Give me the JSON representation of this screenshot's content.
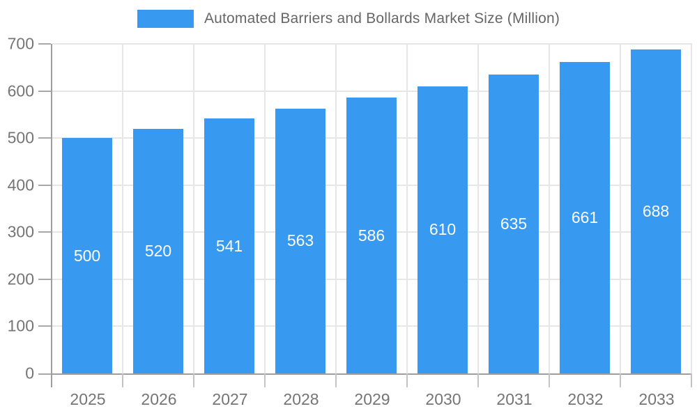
{
  "chart_data": {
    "type": "bar",
    "title": "Automated Barriers and Bollards Market Size (Million)",
    "legend": {
      "position": "top",
      "label": "Automated Barriers and Bollards Market Size (Million)"
    },
    "categories": [
      "2025",
      "2026",
      "2027",
      "2028",
      "2029",
      "2030",
      "2031",
      "2032",
      "2033"
    ],
    "values": [
      500,
      520,
      541,
      563,
      586,
      610,
      635,
      661,
      688
    ],
    "xlabel": "",
    "ylabel": "",
    "ylim": [
      0,
      700
    ],
    "ytick_step": 100,
    "yticks": [
      "700",
      "600",
      "500",
      "400",
      "300",
      "200",
      "100",
      "0"
    ],
    "grid": "on",
    "value_labels": "inside-center",
    "colors": {
      "bar": "#3899f0",
      "value_text": "#ffffff",
      "axis_text": "#757575",
      "title_text": "#666666",
      "grid": "#e6e6e6",
      "axis_line": "#9e9e9e"
    }
  }
}
